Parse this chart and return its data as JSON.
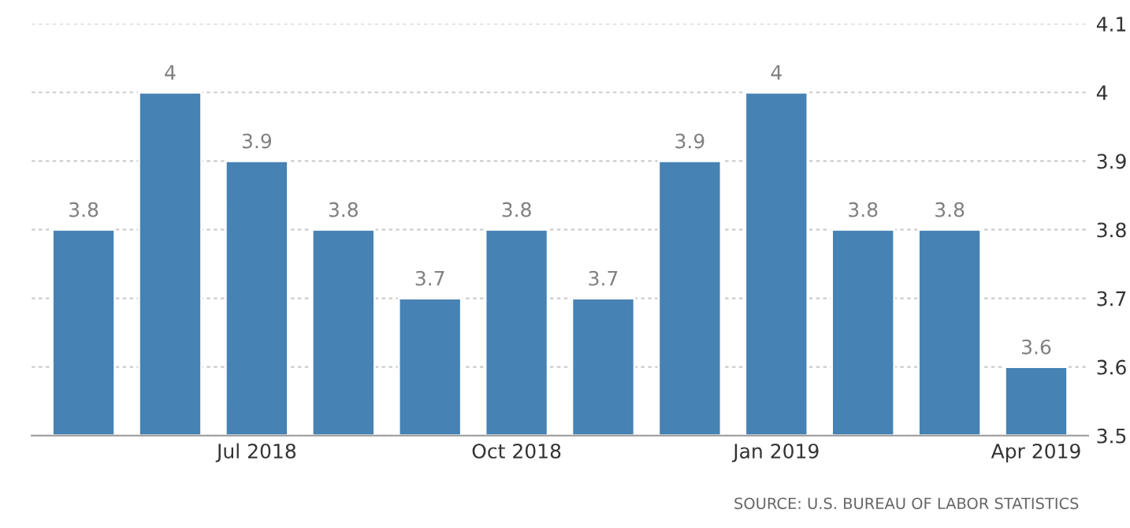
{
  "chart_data": {
    "type": "bar",
    "categories": [
      null,
      null,
      "Jul 2018",
      null,
      null,
      "Oct 2018",
      null,
      null,
      "Jan 2019",
      null,
      null,
      "Apr 2019"
    ],
    "values": [
      3.8,
      4,
      3.9,
      3.8,
      3.7,
      3.8,
      3.7,
      3.9,
      4,
      3.8,
      3.8,
      3.6
    ],
    "color": "#4682b4",
    "ylim": [
      3.5,
      4.1
    ],
    "yticks": [
      3.5,
      3.6,
      3.7,
      3.8,
      3.9,
      4,
      4.1
    ],
    "grid": "y",
    "data_labels": true,
    "annotations": [
      "SOURCE: U.S. BUREAU OF LABOR STATISTICS"
    ]
  }
}
